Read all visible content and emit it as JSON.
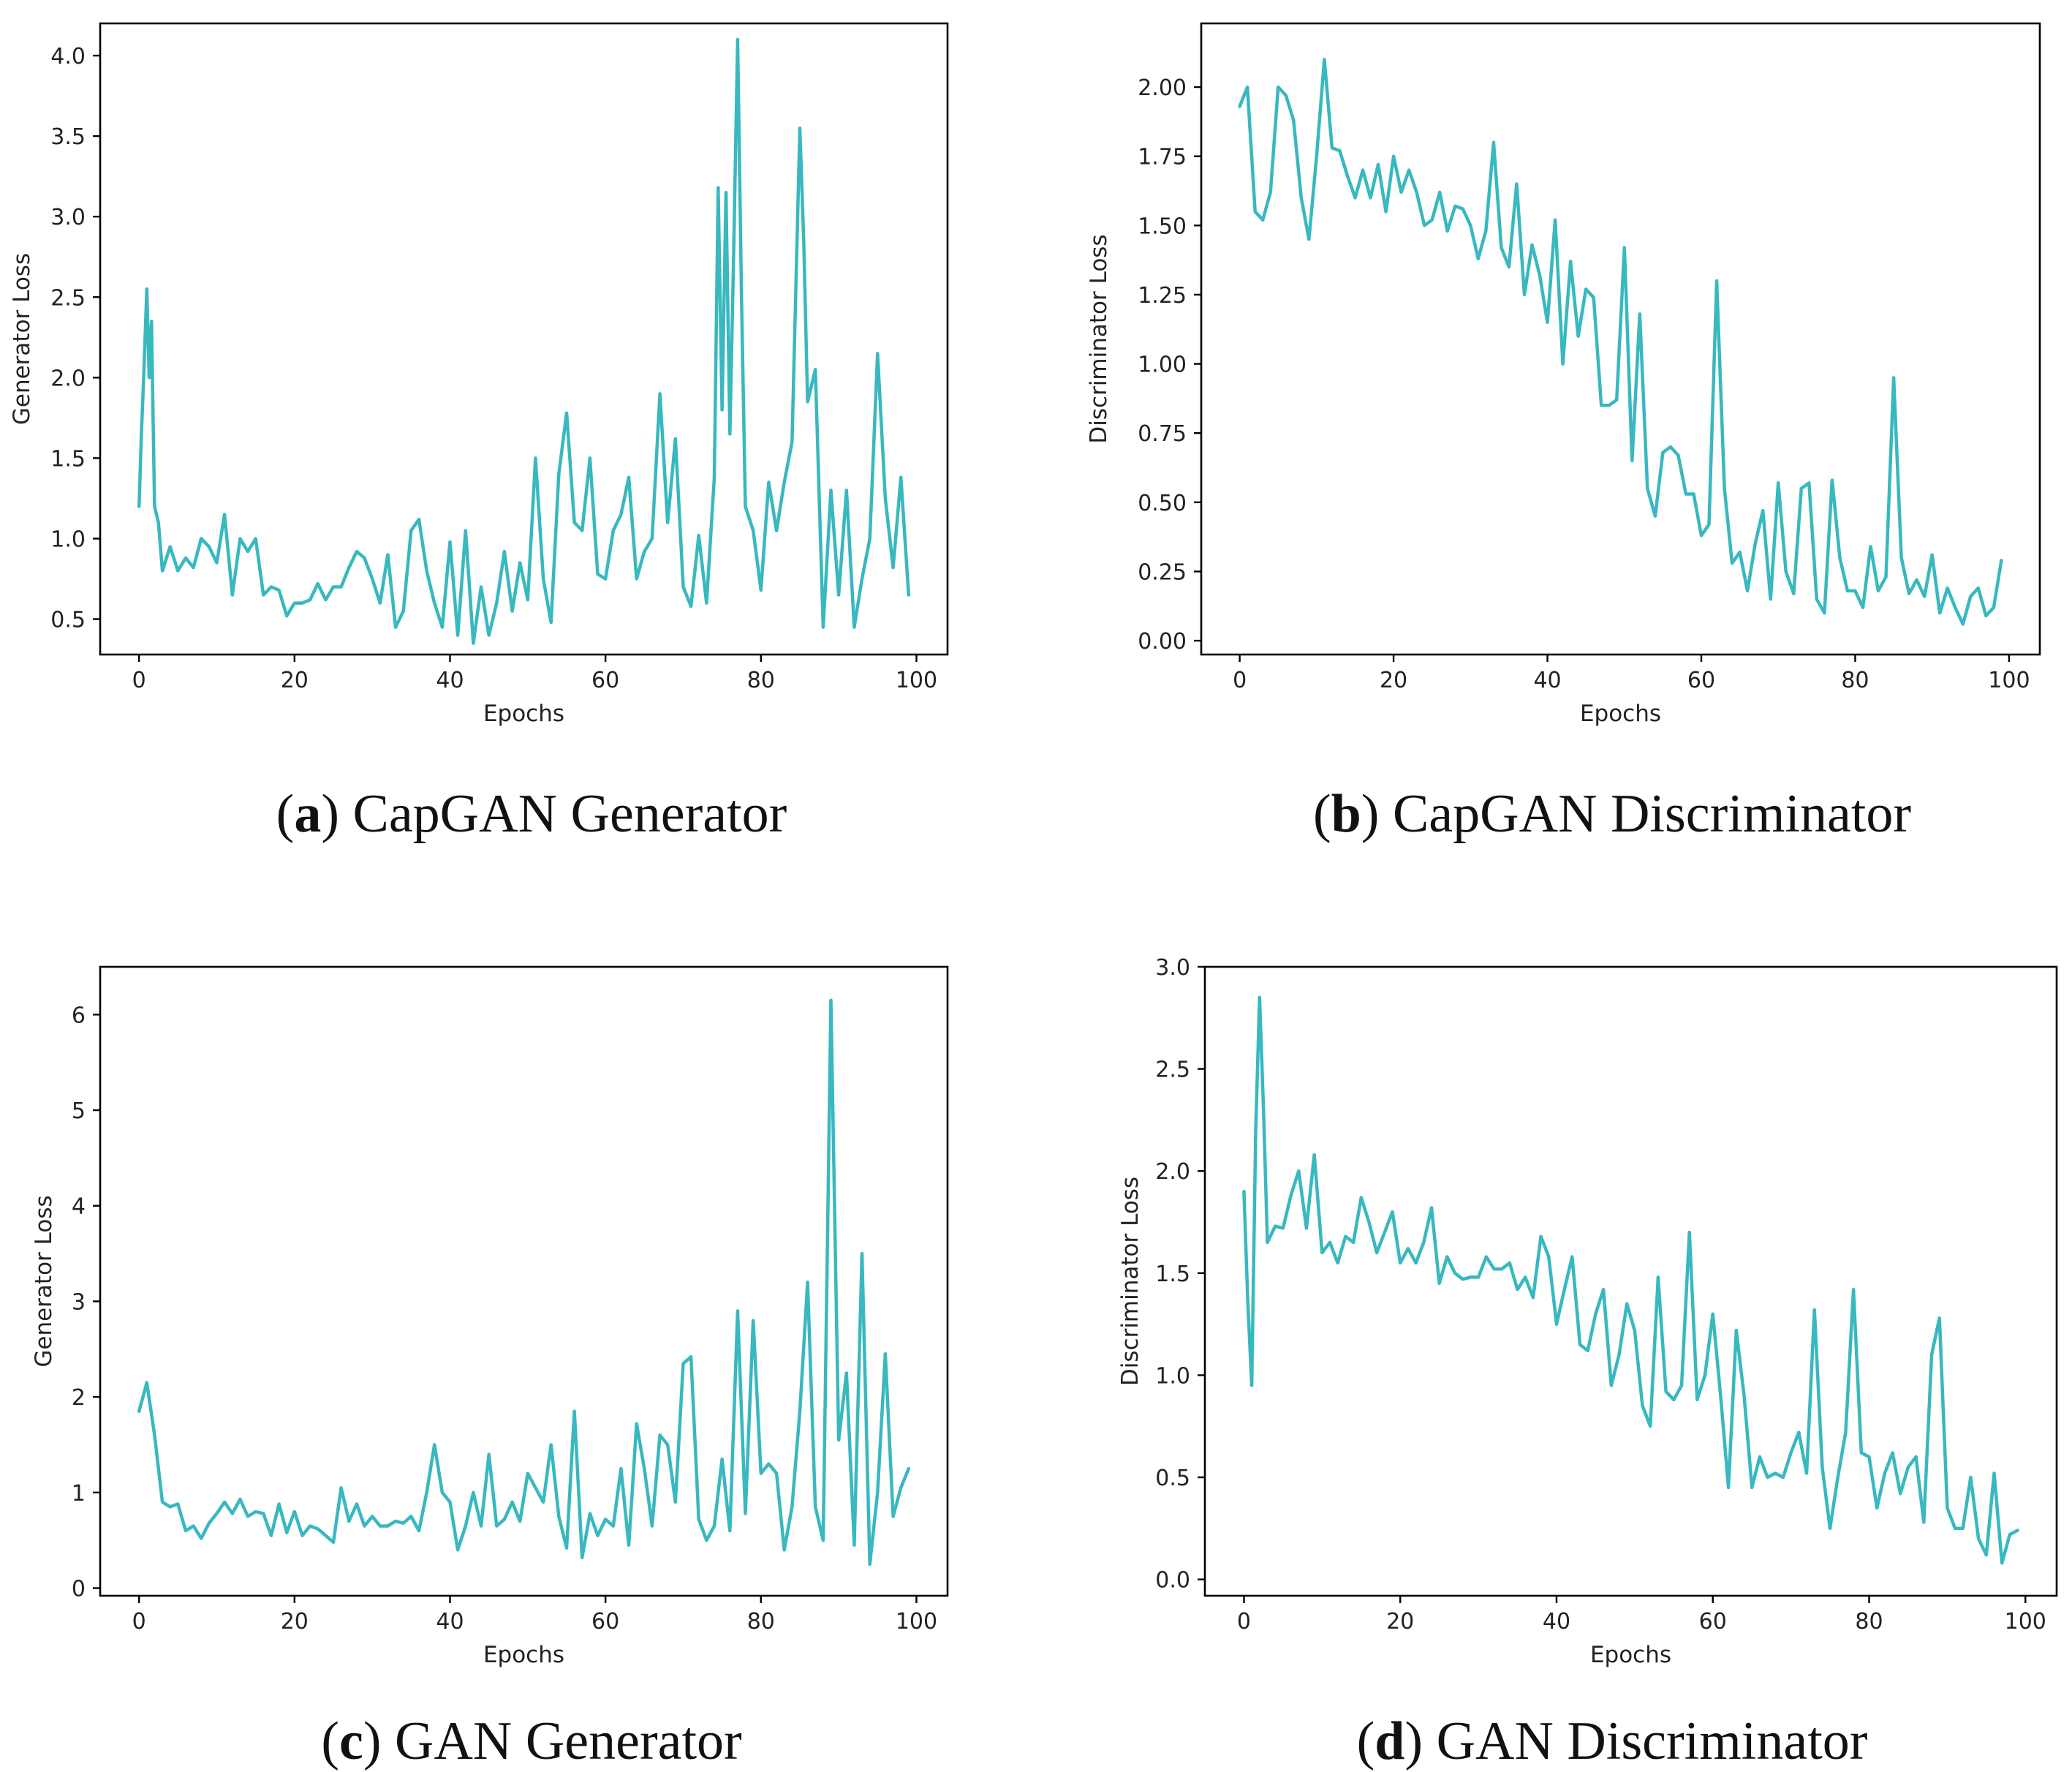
{
  "figure": {
    "line_color": "#38b8bf",
    "panels": [
      {
        "caption_letter": "a",
        "caption_text": "CapGAN Generator"
      },
      {
        "caption_letter": "b",
        "caption_text": "CapGAN Discriminator"
      },
      {
        "caption_letter": "c",
        "caption_text": "GAN Generator"
      },
      {
        "caption_letter": "d",
        "caption_text": "GAN Discriminator"
      }
    ]
  },
  "chart_data": [
    {
      "type": "line",
      "title": "",
      "xlabel": "Epochs",
      "ylabel": "Generator Loss",
      "xlim": [
        -5,
        104
      ],
      "ylim": [
        0.28,
        4.2
      ],
      "xticks": [
        0,
        20,
        40,
        60,
        80,
        100
      ],
      "xtick_labels": [
        "0",
        "20",
        "40",
        "60",
        "80",
        "100"
      ],
      "yticks": [
        0.5,
        1.0,
        1.5,
        2.0,
        2.5,
        3.0,
        3.5,
        4.0
      ],
      "ytick_labels": [
        "0.5",
        "1.0",
        "1.5",
        "2.0",
        "2.5",
        "3.0",
        "3.5",
        "4.0"
      ],
      "series": [
        {
          "name": "Generator Loss",
          "x": [
            0,
            0.3,
            0.6,
            1,
            1.3,
            1.6,
            2,
            2.5,
            3,
            4,
            5,
            6,
            7,
            8,
            9,
            10,
            11,
            12,
            13,
            14,
            15,
            16,
            17,
            18,
            19,
            20,
            21,
            22,
            23,
            24,
            25,
            26,
            27,
            28,
            29,
            30,
            31,
            32,
            33,
            34,
            35,
            36,
            37,
            38,
            39,
            40,
            41,
            42,
            43,
            44,
            45,
            46,
            47,
            48,
            49,
            50,
            51,
            52,
            53,
            54,
            55,
            56,
            57,
            58,
            59,
            60,
            61,
            62,
            63,
            64,
            65,
            66,
            67,
            68,
            69,
            70,
            71,
            72,
            73,
            74,
            74.5,
            75,
            75.5,
            76,
            76.5,
            77,
            77.5,
            78,
            79,
            80,
            81,
            82,
            83,
            84,
            85,
            85.5,
            86,
            87,
            88,
            89,
            90,
            91,
            92,
            93,
            94,
            95,
            96,
            97,
            98,
            99
          ],
          "values": [
            1.2,
            1.65,
            2.0,
            2.55,
            2.0,
            2.35,
            1.2,
            1.1,
            0.8,
            0.95,
            0.8,
            0.88,
            0.82,
            1.0,
            0.95,
            0.85,
            1.15,
            0.65,
            1.0,
            0.92,
            1.0,
            0.65,
            0.7,
            0.68,
            0.52,
            0.6,
            0.6,
            0.62,
            0.72,
            0.62,
            0.7,
            0.7,
            0.82,
            0.92,
            0.88,
            0.75,
            0.6,
            0.9,
            0.45,
            0.55,
            1.05,
            1.12,
            0.8,
            0.6,
            0.45,
            0.98,
            0.4,
            1.05,
            0.35,
            0.7,
            0.4,
            0.6,
            0.92,
            0.55,
            0.85,
            0.62,
            1.5,
            0.75,
            0.48,
            1.4,
            1.78,
            1.1,
            1.05,
            1.5,
            0.78,
            0.75,
            1.05,
            1.15,
            1.38,
            0.75,
            0.92,
            1.0,
            1.9,
            1.1,
            1.62,
            0.7,
            0.58,
            1.02,
            0.6,
            1.38,
            3.18,
            1.8,
            3.15,
            1.65,
            2.8,
            4.1,
            2.5,
            1.2,
            1.05,
            0.68,
            1.35,
            1.05,
            1.35,
            1.6,
            3.55,
            2.85,
            1.85,
            2.05,
            0.45,
            1.3,
            0.65,
            1.3,
            0.45,
            0.75,
            1.0,
            2.15,
            1.25,
            0.82,
            1.38,
            0.65
          ]
        }
      ]
    },
    {
      "type": "line",
      "title": "",
      "xlabel": "Epochs",
      "ylabel": "Discriminator Loss",
      "xlim": [
        -5,
        104
      ],
      "ylim": [
        -0.05,
        2.23
      ],
      "xticks": [
        0,
        20,
        40,
        60,
        80,
        100
      ],
      "xtick_labels": [
        "0",
        "20",
        "40",
        "60",
        "80",
        "100"
      ],
      "yticks": [
        0.0,
        0.25,
        0.5,
        0.75,
        1.0,
        1.25,
        1.5,
        1.75,
        2.0
      ],
      "ytick_labels": [
        "0.00",
        "0.25",
        "0.50",
        "0.75",
        "1.00",
        "1.25",
        "1.50",
        "1.75",
        "2.00"
      ],
      "series": [
        {
          "name": "Discriminator Loss",
          "x": [
            0,
            1,
            2,
            3,
            4,
            5,
            6,
            7,
            8,
            9,
            10,
            11,
            12,
            13,
            14,
            15,
            16,
            17,
            18,
            19,
            20,
            21,
            22,
            23,
            24,
            25,
            26,
            27,
            28,
            29,
            30,
            31,
            32,
            33,
            34,
            35,
            36,
            37,
            38,
            39,
            40,
            41,
            42,
            43,
            44,
            45,
            46,
            47,
            48,
            49,
            50,
            51,
            52,
            53,
            54,
            55,
            56,
            57,
            58,
            59,
            60,
            61,
            62,
            63,
            64,
            65,
            66,
            67,
            68,
            69,
            70,
            71,
            72,
            73,
            74,
            75,
            76,
            77,
            78,
            79,
            80,
            81,
            82,
            83,
            84,
            85,
            86,
            87,
            88,
            89,
            90,
            91,
            92,
            93,
            94,
            95,
            96,
            97,
            98,
            99
          ],
          "values": [
            1.93,
            2.0,
            1.55,
            1.52,
            1.62,
            2.0,
            1.97,
            1.88,
            1.6,
            1.45,
            1.75,
            2.1,
            1.78,
            1.77,
            1.68,
            1.6,
            1.7,
            1.6,
            1.72,
            1.55,
            1.75,
            1.62,
            1.7,
            1.62,
            1.5,
            1.52,
            1.62,
            1.48,
            1.57,
            1.56,
            1.5,
            1.38,
            1.48,
            1.8,
            1.42,
            1.35,
            1.65,
            1.25,
            1.43,
            1.32,
            1.15,
            1.52,
            1.0,
            1.37,
            1.1,
            1.27,
            1.24,
            0.85,
            0.85,
            0.87,
            1.42,
            0.65,
            1.18,
            0.55,
            0.45,
            0.68,
            0.7,
            0.67,
            0.53,
            0.53,
            0.38,
            0.42,
            1.3,
            0.55,
            0.28,
            0.32,
            0.18,
            0.35,
            0.47,
            0.15,
            0.57,
            0.25,
            0.17,
            0.55,
            0.57,
            0.15,
            0.1,
            0.58,
            0.3,
            0.18,
            0.18,
            0.12,
            0.34,
            0.18,
            0.23,
            0.95,
            0.3,
            0.17,
            0.22,
            0.16,
            0.31,
            0.1,
            0.19,
            0.12,
            0.06,
            0.16,
            0.19,
            0.09,
            0.12,
            0.29
          ]
        }
      ]
    },
    {
      "type": "line",
      "title": "",
      "xlabel": "Epochs",
      "ylabel": "Generator Loss",
      "xlim": [
        -5,
        104
      ],
      "ylim": [
        -0.08,
        6.5
      ],
      "xticks": [
        0,
        20,
        40,
        60,
        80,
        100
      ],
      "xtick_labels": [
        "0",
        "20",
        "40",
        "60",
        "80",
        "100"
      ],
      "yticks": [
        0,
        1,
        2,
        3,
        4,
        5,
        6
      ],
      "ytick_labels": [
        "0",
        "1",
        "2",
        "3",
        "4",
        "5",
        "6"
      ],
      "series": [
        {
          "name": "Generator Loss",
          "x": [
            0,
            1,
            2,
            3,
            4,
            5,
            6,
            7,
            8,
            9,
            10,
            11,
            12,
            13,
            14,
            15,
            16,
            17,
            18,
            19,
            20,
            21,
            22,
            23,
            24,
            25,
            26,
            27,
            28,
            29,
            30,
            31,
            32,
            33,
            34,
            35,
            36,
            37,
            38,
            39,
            40,
            41,
            42,
            43,
            44,
            45,
            46,
            47,
            48,
            49,
            50,
            51,
            52,
            53,
            54,
            55,
            56,
            57,
            58,
            59,
            60,
            61,
            62,
            63,
            64,
            65,
            66,
            67,
            68,
            69,
            70,
            71,
            72,
            73,
            74,
            75,
            76,
            77,
            78,
            79,
            80,
            81,
            82,
            83,
            84,
            85,
            86,
            87,
            88,
            89,
            90,
            91,
            92,
            93,
            94,
            95,
            96,
            97,
            98,
            99
          ],
          "values": [
            1.85,
            2.15,
            1.6,
            0.9,
            0.85,
            0.88,
            0.6,
            0.65,
            0.52,
            0.68,
            0.78,
            0.9,
            0.78,
            0.93,
            0.75,
            0.8,
            0.78,
            0.55,
            0.88,
            0.58,
            0.8,
            0.55,
            0.65,
            0.62,
            0.55,
            0.48,
            1.05,
            0.7,
            0.88,
            0.65,
            0.75,
            0.65,
            0.65,
            0.7,
            0.68,
            0.75,
            0.6,
            1.0,
            1.5,
            1.0,
            0.9,
            0.4,
            0.65,
            1.0,
            0.65,
            1.4,
            0.65,
            0.72,
            0.9,
            0.7,
            1.2,
            1.05,
            0.9,
            1.5,
            0.75,
            0.42,
            1.85,
            0.32,
            0.78,
            0.55,
            0.72,
            0.65,
            1.25,
            0.45,
            1.72,
            1.25,
            0.65,
            1.6,
            1.5,
            0.9,
            2.35,
            2.42,
            0.72,
            0.5,
            0.65,
            1.35,
            0.6,
            2.9,
            0.78,
            2.8,
            1.2,
            1.3,
            1.2,
            0.4,
            0.85,
            1.85,
            3.2,
            0.85,
            0.5,
            6.15,
            1.55,
            2.25,
            0.45,
            3.5,
            0.25,
            1.0,
            2.45,
            0.75,
            1.05,
            1.25
          ]
        }
      ]
    },
    {
      "type": "line",
      "title": "",
      "xlabel": "Epochs",
      "ylabel": "Discriminator Loss",
      "xlim": [
        -5,
        104
      ],
      "ylim": [
        -0.08,
        3.0
      ],
      "xticks": [
        0,
        20,
        40,
        60,
        80,
        100
      ],
      "xtick_labels": [
        "0",
        "20",
        "40",
        "60",
        "80",
        "100"
      ],
      "yticks": [
        0.0,
        0.5,
        1.0,
        1.5,
        2.0,
        2.5,
        3.0
      ],
      "ytick_labels": [
        "0.0",
        "0.5",
        "1.0",
        "1.5",
        "2.0",
        "2.5",
        "3.0"
      ],
      "series": [
        {
          "name": "Discriminator Loss",
          "x": [
            0,
            0.5,
            1,
            1.5,
            2,
            2.5,
            3,
            4,
            5,
            6,
            7,
            8,
            9,
            10,
            11,
            12,
            13,
            14,
            15,
            16,
            17,
            18,
            19,
            20,
            21,
            22,
            23,
            24,
            25,
            26,
            27,
            28,
            29,
            30,
            31,
            32,
            33,
            34,
            35,
            36,
            37,
            38,
            39,
            40,
            41,
            42,
            43,
            44,
            45,
            46,
            47,
            48,
            49,
            50,
            51,
            52,
            53,
            54,
            55,
            56,
            57,
            58,
            59,
            60,
            61,
            62,
            63,
            64,
            65,
            66,
            67,
            68,
            69,
            70,
            71,
            72,
            73,
            74,
            75,
            76,
            77,
            78,
            79,
            80,
            81,
            82,
            83,
            84,
            85,
            86,
            87,
            88,
            89,
            90,
            91,
            92,
            93,
            94,
            95,
            96,
            97,
            98,
            99
          ],
          "values": [
            1.9,
            1.35,
            0.95,
            2.2,
            2.85,
            2.3,
            1.65,
            1.73,
            1.72,
            1.88,
            2.0,
            1.72,
            2.08,
            1.6,
            1.65,
            1.55,
            1.68,
            1.65,
            1.87,
            1.75,
            1.6,
            1.7,
            1.8,
            1.55,
            1.62,
            1.55,
            1.65,
            1.82,
            1.45,
            1.58,
            1.5,
            1.47,
            1.48,
            1.48,
            1.58,
            1.52,
            1.52,
            1.55,
            1.42,
            1.48,
            1.38,
            1.68,
            1.58,
            1.25,
            1.42,
            1.58,
            1.15,
            1.12,
            1.3,
            1.42,
            0.95,
            1.1,
            1.35,
            1.22,
            0.85,
            0.75,
            1.48,
            0.92,
            0.88,
            0.95,
            1.7,
            0.88,
            1.0,
            1.3,
            0.9,
            0.45,
            1.22,
            0.9,
            0.45,
            0.6,
            0.5,
            0.52,
            0.5,
            0.62,
            0.72,
            0.52,
            1.32,
            0.55,
            0.25,
            0.5,
            0.72,
            1.42,
            0.62,
            0.6,
            0.35,
            0.52,
            0.62,
            0.42,
            0.55,
            0.6,
            0.28,
            1.1,
            1.28,
            0.35,
            0.25,
            0.25,
            0.5,
            0.2,
            0.12,
            0.52,
            0.08,
            0.22,
            0.24
          ]
        }
      ]
    }
  ]
}
